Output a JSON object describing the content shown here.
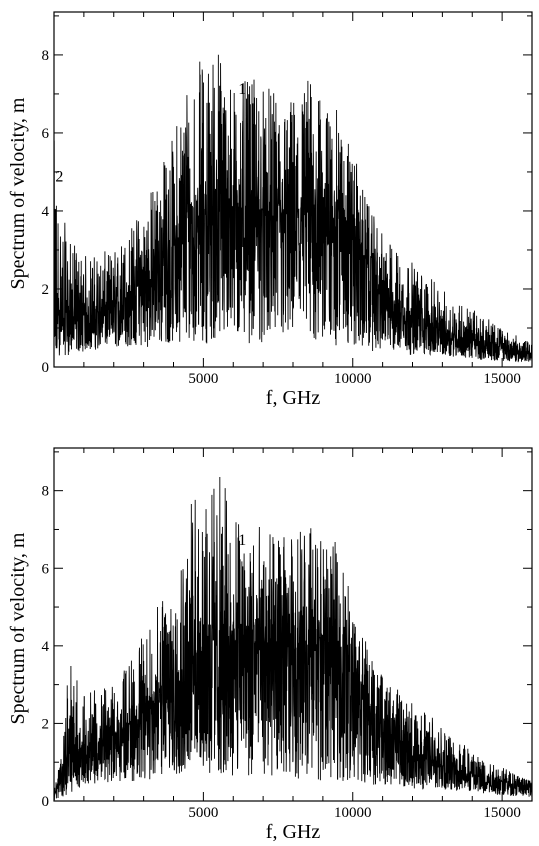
{
  "chart_data": [
    {
      "type": "line",
      "xlabel": "f, GHz",
      "ylabel": "Spectrum of velocity, m",
      "xlim": [
        0,
        16000
      ],
      "ylim": [
        0,
        9.1
      ],
      "xticks": [
        5000,
        10000,
        15000
      ],
      "xtick_labels": [
        "5000",
        "10000",
        "15000"
      ],
      "yticks": [
        0,
        2,
        4,
        6,
        8
      ],
      "ytick_labels": [
        "0",
        "2",
        "4",
        "6",
        "8"
      ],
      "grid": false,
      "annotations": [
        {
          "text": "1",
          "x": 6300,
          "y": 7.0
        },
        {
          "text": "2",
          "x": 180,
          "y": 4.75
        }
      ],
      "envelope": {
        "f": [
          0,
          200,
          500,
          1000,
          2000,
          3000,
          4000,
          4500,
          5000,
          5500,
          6000,
          7000,
          7500,
          8000,
          8500,
          9000,
          9500,
          10000,
          10500,
          11000,
          12000,
          13000,
          14000,
          15000,
          16000
        ],
        "upper": [
          5.9,
          4.2,
          3.3,
          2.9,
          3.0,
          4.2,
          6.0,
          8.0,
          7.9,
          8.5,
          7.3,
          7.4,
          6.9,
          7.0,
          7.6,
          6.7,
          6.6,
          5.6,
          4.2,
          3.4,
          2.7,
          2.0,
          1.5,
          1.0,
          0.6
        ],
        "lower": [
          0.05,
          0.3,
          0.3,
          0.4,
          0.5,
          0.5,
          0.6,
          0.7,
          0.6,
          0.6,
          0.6,
          0.6,
          0.6,
          0.6,
          0.5,
          0.5,
          0.5,
          0.5,
          0.4,
          0.4,
          0.3,
          0.3,
          0.2,
          0.15,
          0.1
        ],
        "base": [
          0.8,
          1.5,
          1.3,
          1.3,
          1.5,
          2.2,
          3.1,
          3.6,
          4.0,
          4.2,
          4.1,
          4.0,
          3.9,
          3.9,
          4.1,
          4.1,
          4.0,
          3.6,
          2.6,
          1.9,
          1.3,
          0.9,
          0.7,
          0.5,
          0.35
        ]
      }
    },
    {
      "type": "line",
      "xlabel": "f, GHz",
      "ylabel": "Spectrum of velocity, m",
      "xlim": [
        0,
        16000
      ],
      "ylim": [
        0,
        9.1
      ],
      "xticks": [
        5000,
        10000,
        15000
      ],
      "xtick_labels": [
        "5000",
        "10000",
        "15000"
      ],
      "yticks": [
        0,
        2,
        4,
        6,
        8
      ],
      "ytick_labels": [
        "0",
        "2",
        "4",
        "6",
        "8"
      ],
      "grid": false,
      "annotations": [
        {
          "text": "1",
          "x": 6300,
          "y": 6.6
        }
      ],
      "envelope": {
        "f": [
          0,
          300,
          500,
          1000,
          2000,
          3000,
          4000,
          4500,
          5000,
          5500,
          6000,
          7000,
          7500,
          8000,
          8500,
          9000,
          9500,
          10000,
          10500,
          11000,
          12000,
          13000,
          14000,
          15000,
          16000
        ],
        "upper": [
          0.3,
          1.4,
          3.7,
          2.8,
          3.0,
          4.3,
          5.9,
          8.0,
          7.7,
          8.6,
          7.6,
          7.1,
          6.8,
          6.9,
          7.4,
          6.6,
          6.7,
          5.4,
          4.0,
          3.2,
          2.6,
          2.0,
          1.4,
          0.9,
          0.5
        ],
        "lower": [
          0.0,
          0.1,
          0.2,
          0.4,
          0.5,
          0.5,
          0.6,
          0.7,
          0.6,
          0.6,
          0.6,
          0.6,
          0.6,
          0.6,
          0.5,
          0.5,
          0.5,
          0.5,
          0.4,
          0.4,
          0.3,
          0.3,
          0.2,
          0.15,
          0.1
        ],
        "base": [
          0.1,
          0.9,
          1.2,
          1.4,
          1.6,
          2.3,
          3.2,
          3.6,
          4.0,
          4.2,
          4.1,
          4.0,
          3.9,
          3.9,
          4.1,
          4.1,
          4.0,
          3.6,
          2.6,
          1.9,
          1.3,
          0.9,
          0.7,
          0.5,
          0.35
        ]
      }
    }
  ]
}
